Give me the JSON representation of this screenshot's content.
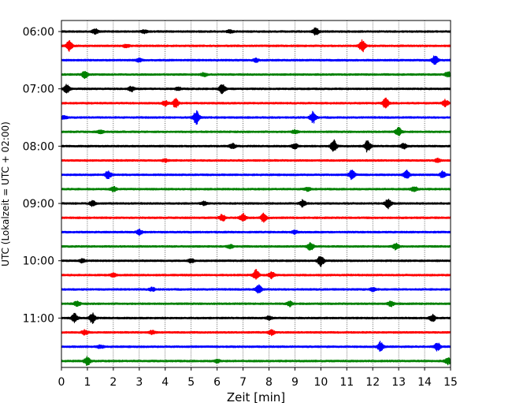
{
  "chart_data": {
    "type": "line",
    "title": "",
    "xlabel": "Zeit  [min]",
    "ylabel": "UTC (Lokalzeit = UTC + 02:00)",
    "xlim": [
      0,
      15
    ],
    "x_ticks": [
      "0",
      "1",
      "2",
      "3",
      "4",
      "5",
      "6",
      "7",
      "8",
      "9",
      "10",
      "11",
      "12",
      "13",
      "14",
      "15"
    ],
    "y_ticks": [
      "06:00",
      "07:00",
      "08:00",
      "09:00",
      "10:00",
      "11:00"
    ],
    "grid_x": true,
    "grid_style": "dotted",
    "trace_interval_min": 15,
    "colors": [
      "#000000",
      "#ff0000",
      "#0000ff",
      "#008000"
    ],
    "traces": [
      {
        "start": "06:00",
        "color": "#000000",
        "bursts": [
          [
            1.3,
            3
          ],
          [
            9.8,
            4
          ],
          [
            3.2,
            2
          ],
          [
            6.5,
            2
          ]
        ]
      },
      {
        "start": "06:15",
        "color": "#ff0000",
        "bursts": [
          [
            0.3,
            6
          ],
          [
            11.6,
            7
          ],
          [
            2.5,
            2
          ]
        ]
      },
      {
        "start": "06:30",
        "color": "#0000ff",
        "bursts": [
          [
            14.4,
            6
          ],
          [
            3.0,
            2
          ],
          [
            7.5,
            2
          ]
        ]
      },
      {
        "start": "06:45",
        "color": "#008000",
        "bursts": [
          [
            0.9,
            4
          ],
          [
            5.5,
            2
          ],
          [
            14.9,
            3
          ]
        ]
      },
      {
        "start": "07:00",
        "color": "#000000",
        "bursts": [
          [
            0.2,
            5
          ],
          [
            6.2,
            6
          ],
          [
            2.7,
            3
          ],
          [
            4.5,
            2
          ]
        ]
      },
      {
        "start": "07:15",
        "color": "#ff0000",
        "bursts": [
          [
            4.4,
            5
          ],
          [
            12.5,
            6
          ],
          [
            14.8,
            4
          ],
          [
            4.0,
            3
          ]
        ]
      },
      {
        "start": "07:30",
        "color": "#0000ff",
        "bursts": [
          [
            5.2,
            8
          ],
          [
            9.7,
            7
          ],
          [
            0.1,
            2
          ]
        ]
      },
      {
        "start": "07:45",
        "color": "#008000",
        "bursts": [
          [
            13.0,
            5
          ],
          [
            9.0,
            2
          ],
          [
            1.5,
            2
          ]
        ]
      },
      {
        "start": "08:00",
        "color": "#000000",
        "bursts": [
          [
            10.5,
            8
          ],
          [
            11.8,
            7
          ],
          [
            6.6,
            3
          ],
          [
            9.0,
            3
          ],
          [
            13.2,
            3
          ]
        ]
      },
      {
        "start": "08:15",
        "color": "#ff0000",
        "bursts": [
          [
            14.5,
            2
          ],
          [
            4.0,
            1.5
          ]
        ]
      },
      {
        "start": "08:30",
        "color": "#0000ff",
        "bursts": [
          [
            1.8,
            5
          ],
          [
            11.2,
            6
          ],
          [
            13.3,
            5
          ],
          [
            14.7,
            4
          ]
        ]
      },
      {
        "start": "08:45",
        "color": "#008000",
        "bursts": [
          [
            2.0,
            3
          ],
          [
            13.6,
            3
          ],
          [
            9.5,
            2
          ]
        ]
      },
      {
        "start": "09:00",
        "color": "#000000",
        "bursts": [
          [
            12.6,
            6
          ],
          [
            9.3,
            4
          ],
          [
            1.2,
            3
          ],
          [
            5.5,
            2
          ]
        ]
      },
      {
        "start": "09:15",
        "color": "#ff0000",
        "bursts": [
          [
            7.0,
            5
          ],
          [
            7.8,
            5
          ],
          [
            6.2,
            4
          ]
        ]
      },
      {
        "start": "09:30",
        "color": "#0000ff",
        "bursts": [
          [
            3.0,
            3
          ],
          [
            9.0,
            2
          ]
        ]
      },
      {
        "start": "09:45",
        "color": "#008000",
        "bursts": [
          [
            9.6,
            5
          ],
          [
            12.9,
            4
          ],
          [
            6.5,
            2
          ]
        ]
      },
      {
        "start": "10:00",
        "color": "#000000",
        "bursts": [
          [
            10.0,
            7
          ],
          [
            0.8,
            2
          ],
          [
            5.0,
            2
          ]
        ]
      },
      {
        "start": "10:15",
        "color": "#ff0000",
        "bursts": [
          [
            7.5,
            6
          ],
          [
            8.1,
            4
          ],
          [
            2.0,
            2
          ]
        ]
      },
      {
        "start": "10:30",
        "color": "#0000ff",
        "bursts": [
          [
            7.6,
            5
          ],
          [
            3.5,
            2
          ],
          [
            12.0,
            2
          ]
        ]
      },
      {
        "start": "10:45",
        "color": "#008000",
        "bursts": [
          [
            0.6,
            3
          ],
          [
            8.8,
            3
          ],
          [
            12.7,
            3
          ]
        ]
      },
      {
        "start": "11:00",
        "color": "#000000",
        "bursts": [
          [
            1.2,
            6
          ],
          [
            0.5,
            5
          ],
          [
            14.3,
            4
          ],
          [
            8.0,
            2
          ]
        ]
      },
      {
        "start": "11:15",
        "color": "#ff0000",
        "bursts": [
          [
            8.1,
            3
          ],
          [
            0.9,
            3
          ],
          [
            3.5,
            2
          ]
        ]
      },
      {
        "start": "11:30",
        "color": "#0000ff",
        "bursts": [
          [
            12.3,
            6
          ],
          [
            14.5,
            5
          ],
          [
            1.5,
            2
          ]
        ]
      },
      {
        "start": "11:45",
        "color": "#008000",
        "bursts": [
          [
            1.0,
            5
          ],
          [
            14.9,
            4
          ],
          [
            6.0,
            2
          ]
        ]
      }
    ]
  }
}
